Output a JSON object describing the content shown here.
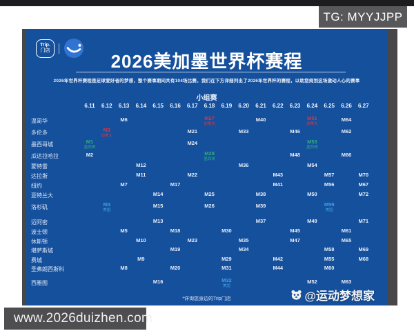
{
  "page": {
    "top_badge": "TG: MYYJJPP",
    "bottom_url": "www.2026duizhen.com"
  },
  "poster": {
    "brand": {
      "box_line1": "Trip.",
      "box_line2": "门店"
    },
    "title": "2026美加墨世界杯赛程",
    "subtitle": "2026年世界杯赛程是足球爱好者的梦想，整个赛事期间共有104场比赛，我们在下方详细列出了2026年世界杯的赛程，以助您规划这场激动人心的赛事",
    "section_label": "小组赛",
    "footnote": "*详询您身边的Trip门店",
    "watermark": "@运动梦想家",
    "colors": {
      "background": "#15509d",
      "match_default": "#e8eef8",
      "match_canada": "#d23a45",
      "match_mexico": "#2fae7e",
      "match_usa": "#3fa0e8"
    }
  },
  "chart_data": {
    "type": "table",
    "title": "2026美加墨世界杯赛程",
    "section": "小组赛",
    "columns": [
      "6.11",
      "6.12",
      "6.13",
      "6.14",
      "6.15",
      "6.16",
      "6.17",
      "6.18",
      "6.19",
      "6.20",
      "6.21",
      "6.22",
      "6.23",
      "6.24",
      "6.25",
      "6.26",
      "6.27"
    ],
    "rows": [
      "温哥华",
      "多伦多",
      "墨西哥城",
      "瓜达拉哈拉",
      "蒙特雷",
      "达拉斯",
      "纽约",
      "亚特兰大",
      "洛杉矶",
      "迈阿密",
      "波士顿",
      "休斯顿",
      "堪萨斯城",
      "费城",
      "圣弗朗西斯科",
      "西雅图"
    ],
    "matches": [
      {
        "city": "温哥华",
        "date": "6.13",
        "label": "M6",
        "team": null
      },
      {
        "city": "温哥华",
        "date": "6.18",
        "label": "M27",
        "team": "加拿大"
      },
      {
        "city": "温哥华",
        "date": "6.21",
        "label": "M40",
        "team": null
      },
      {
        "city": "温哥华",
        "date": "6.24",
        "label": "M51",
        "team": "加拿大"
      },
      {
        "city": "温哥华",
        "date": "6.26",
        "label": "M64",
        "team": null
      },
      {
        "city": "多伦多",
        "date": "6.12",
        "label": "M3",
        "team": "加拿大"
      },
      {
        "city": "多伦多",
        "date": "6.17",
        "label": "M21",
        "team": null
      },
      {
        "city": "多伦多",
        "date": "6.20",
        "label": "M33",
        "team": null
      },
      {
        "city": "多伦多",
        "date": "6.23",
        "label": "M46",
        "team": null
      },
      {
        "city": "多伦多",
        "date": "6.26",
        "label": "M62",
        "team": null
      },
      {
        "city": "墨西哥城",
        "date": "6.11",
        "label": "M1",
        "team": "墨西哥"
      },
      {
        "city": "墨西哥城",
        "date": "6.17",
        "label": "M24",
        "team": null
      },
      {
        "city": "墨西哥城",
        "date": "6.24",
        "label": "M53",
        "team": "墨西哥"
      },
      {
        "city": "瓜达拉哈拉",
        "date": "6.11",
        "label": "M2",
        "team": null
      },
      {
        "city": "瓜达拉哈拉",
        "date": "6.18",
        "label": "M28",
        "team": "墨西哥"
      },
      {
        "city": "瓜达拉哈拉",
        "date": "6.23",
        "label": "M48",
        "team": null
      },
      {
        "city": "瓜达拉哈拉",
        "date": "6.26",
        "label": "M66",
        "team": null
      },
      {
        "city": "蒙特雷",
        "date": "6.14",
        "label": "M12",
        "team": null
      },
      {
        "city": "蒙特雷",
        "date": "6.20",
        "label": "M36",
        "team": null
      },
      {
        "city": "蒙特雷",
        "date": "6.24",
        "label": "M54",
        "team": null
      },
      {
        "city": "达拉斯",
        "date": "6.14",
        "label": "M11",
        "team": null
      },
      {
        "city": "达拉斯",
        "date": "6.17",
        "label": "M22",
        "team": null
      },
      {
        "city": "达拉斯",
        "date": "6.22",
        "label": "M43",
        "team": null
      },
      {
        "city": "达拉斯",
        "date": "6.25",
        "label": "M57",
        "team": null
      },
      {
        "city": "达拉斯",
        "date": "6.27",
        "label": "M70",
        "team": null
      },
      {
        "city": "纽约",
        "date": "6.13",
        "label": "M7",
        "team": null
      },
      {
        "city": "纽约",
        "date": "6.16",
        "label": "M17",
        "team": null
      },
      {
        "city": "纽约",
        "date": "6.22",
        "label": "M41",
        "team": null
      },
      {
        "city": "纽约",
        "date": "6.25",
        "label": "M56",
        "team": null
      },
      {
        "city": "纽约",
        "date": "6.27",
        "label": "M67",
        "team": null
      },
      {
        "city": "亚特兰大",
        "date": "6.15",
        "label": "M14",
        "team": null
      },
      {
        "city": "亚特兰大",
        "date": "6.18",
        "label": "M25",
        "team": null
      },
      {
        "city": "亚特兰大",
        "date": "6.21",
        "label": "M38",
        "team": null
      },
      {
        "city": "亚特兰大",
        "date": "6.24",
        "label": "M50",
        "team": null
      },
      {
        "city": "亚特兰大",
        "date": "6.27",
        "label": "M72",
        "team": null
      },
      {
        "city": "洛杉矶",
        "date": "6.12",
        "label": "M4",
        "team": "美国"
      },
      {
        "city": "洛杉矶",
        "date": "6.15",
        "label": "M15",
        "team": null
      },
      {
        "city": "洛杉矶",
        "date": "6.18",
        "label": "M26",
        "team": null
      },
      {
        "city": "洛杉矶",
        "date": "6.21",
        "label": "M39",
        "team": null
      },
      {
        "city": "洛杉矶",
        "date": "6.25",
        "label": "M59",
        "team": "美国"
      },
      {
        "city": "迈阿密",
        "date": "6.15",
        "label": "M13",
        "team": null
      },
      {
        "city": "迈阿密",
        "date": "6.21",
        "label": "M37",
        "team": null
      },
      {
        "city": "迈阿密",
        "date": "6.24",
        "label": "M49",
        "team": null
      },
      {
        "city": "迈阿密",
        "date": "6.27",
        "label": "M71",
        "team": null
      },
      {
        "city": "波士顿",
        "date": "6.13",
        "label": "M5",
        "team": null
      },
      {
        "city": "波士顿",
        "date": "6.16",
        "label": "M18",
        "team": null
      },
      {
        "city": "波士顿",
        "date": "6.19",
        "label": "M30",
        "team": null
      },
      {
        "city": "波士顿",
        "date": "6.23",
        "label": "M45",
        "team": null
      },
      {
        "city": "波士顿",
        "date": "6.26",
        "label": "M61",
        "team": null
      },
      {
        "city": "休斯顿",
        "date": "6.14",
        "label": "M10",
        "team": null
      },
      {
        "city": "休斯顿",
        "date": "6.17",
        "label": "M23",
        "team": null
      },
      {
        "city": "休斯顿",
        "date": "6.20",
        "label": "M35",
        "team": null
      },
      {
        "city": "休斯顿",
        "date": "6.23",
        "label": "M47",
        "team": null
      },
      {
        "city": "休斯顿",
        "date": "6.26",
        "label": "M65",
        "team": null
      },
      {
        "city": "堪萨斯城",
        "date": "6.16",
        "label": "M19",
        "team": null
      },
      {
        "city": "堪萨斯城",
        "date": "6.20",
        "label": "M34",
        "team": null
      },
      {
        "city": "堪萨斯城",
        "date": "6.25",
        "label": "M58",
        "team": null
      },
      {
        "city": "堪萨斯城",
        "date": "6.27",
        "label": "M69",
        "team": null
      },
      {
        "city": "费城",
        "date": "6.14",
        "label": "M9",
        "team": null
      },
      {
        "city": "费城",
        "date": "6.19",
        "label": "M29",
        "team": null
      },
      {
        "city": "费城",
        "date": "6.22",
        "label": "M42",
        "team": null
      },
      {
        "city": "费城",
        "date": "6.25",
        "label": "M55",
        "team": null
      },
      {
        "city": "费城",
        "date": "6.27",
        "label": "M68",
        "team": null
      },
      {
        "city": "圣弗朗西斯科",
        "date": "6.13",
        "label": "M8",
        "team": null
      },
      {
        "city": "圣弗朗西斯科",
        "date": "6.16",
        "label": "M20",
        "team": null
      },
      {
        "city": "圣弗朗西斯科",
        "date": "6.19",
        "label": "M31",
        "team": null
      },
      {
        "city": "圣弗朗西斯科",
        "date": "6.22",
        "label": "M44",
        "team": null
      },
      {
        "city": "圣弗朗西斯科",
        "date": "6.25",
        "label": "M60",
        "team": null
      },
      {
        "city": "西雅图",
        "date": "6.15",
        "label": "M16",
        "team": null
      },
      {
        "city": "西雅图",
        "date": "6.19",
        "label": "M32",
        "team": "美国"
      },
      {
        "city": "西雅图",
        "date": "6.24",
        "label": "M52",
        "team": null
      },
      {
        "city": "西雅图",
        "date": "6.26",
        "label": "M63",
        "team": null
      }
    ]
  }
}
